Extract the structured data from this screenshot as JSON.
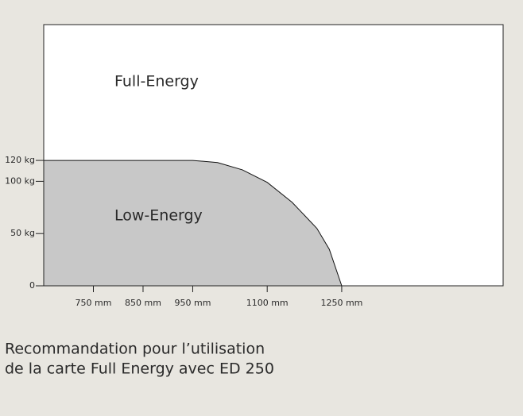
{
  "chart_data": {
    "type": "area",
    "x": [
      650,
      950,
      1000,
      1050,
      1100,
      1150,
      1200,
      1225,
      1250
    ],
    "values": [
      120,
      120,
      118,
      111,
      99,
      80,
      55,
      35,
      0
    ],
    "color": "#c8c8c8",
    "xlim": [
      650,
      1575
    ],
    "ylim": [
      0,
      250
    ],
    "xticks": [
      {
        "value": 750,
        "label": "750 mm"
      },
      {
        "value": 850,
        "label": "850 mm"
      },
      {
        "value": 950,
        "label": "950 mm"
      },
      {
        "value": 1100,
        "label": "1100 mm"
      },
      {
        "value": 1250,
        "label": "1250 mm"
      }
    ],
    "yticks": [
      0,
      {
        "value": 50,
        "label": "50 kg"
      },
      {
        "value": 100,
        "label": "100 kg"
      },
      {
        "value": 120,
        "label": "120 kg"
      }
    ],
    "annotations": [
      "Full-Energy",
      "Low-Energy"
    ],
    "caption": [
      "Recommandation pour l’utilisation",
      "de la carte Full Energy avec ED 250"
    ]
  }
}
